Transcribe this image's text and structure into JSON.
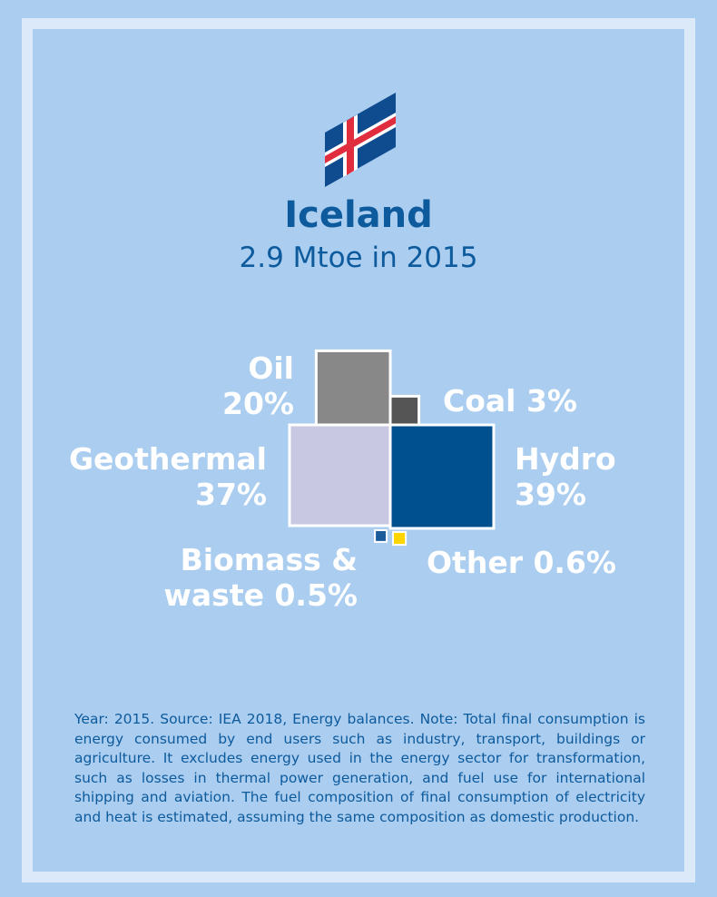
{
  "header": {
    "country": "Iceland",
    "subtitle": "2.9 Mtoe in 2015"
  },
  "flag_icon": "iceland-flag-icon",
  "colors": {
    "background": "#aacdf0",
    "frame": "#dbe9f8",
    "text_dark": "#0d5a9c",
    "oil": "#888888",
    "coal": "#555555",
    "geothermal": "#c8c8e2",
    "hydro": "#00508f",
    "biomass": "#1a5d9a",
    "other": "#ffd500"
  },
  "chart_data": {
    "type": "treemap",
    "title": "Iceland",
    "subtitle": "2.9 Mtoe in 2015",
    "unit": "%",
    "items": [
      {
        "id": "oil",
        "label_line1": "Oil",
        "label_line2": "20%",
        "value": 20
      },
      {
        "id": "coal",
        "label_line1": "Coal 3%",
        "label_line2": "",
        "value": 3
      },
      {
        "id": "geothermal",
        "label_line1": "Geothermal",
        "label_line2": "37%",
        "value": 37
      },
      {
        "id": "hydro",
        "label_line1": "Hydro",
        "label_line2": "39%",
        "value": 39
      },
      {
        "id": "biomass",
        "label_line1": "Biomass &",
        "label_line2": "waste 0.5%",
        "value": 0.5
      },
      {
        "id": "other",
        "label_line1": "Other 0.6%",
        "label_line2": "",
        "value": 0.6
      }
    ]
  },
  "note": "Year: 2015. Source: IEA 2018, Energy balances. Note: Total final consumption is energy consumed by end users such as industry, transport, buildings or agriculture. It excludes energy used in the energy sector for transformation, such as losses in thermal power generation, and fuel use for international shipping and aviation. The fuel composition of final consumption of electricity and heat is estimated, assuming the same composition as domestic production."
}
